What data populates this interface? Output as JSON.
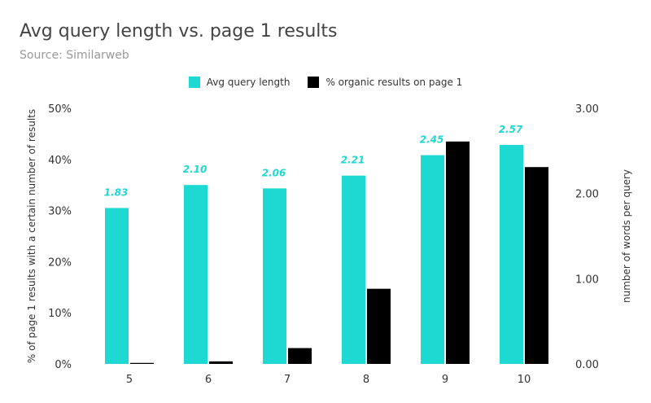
{
  "title": "Avg query length vs. page 1 results",
  "subtitle": "Source: Similarweb",
  "colors": {
    "avg": "#1ed9d1",
    "organic": "#000000"
  },
  "chart_data": {
    "type": "bar",
    "categories": [
      "5",
      "6",
      "7",
      "8",
      "9",
      "10"
    ],
    "series": [
      {
        "name": "Avg query length",
        "axis": "right",
        "values": [
          1.83,
          2.1,
          2.06,
          2.21,
          2.45,
          2.57
        ],
        "labels": [
          "1.83",
          "2.10",
          "2.06",
          "2.21",
          "2.45",
          "2.57"
        ]
      },
      {
        "name": "% organic results on page 1",
        "axis": "left",
        "values": [
          0.2,
          0.5,
          3.1,
          14.7,
          43.5,
          38.5
        ]
      }
    ],
    "ylabel_left": "% of page 1 results with a certain number of results",
    "ylabel_right": "number of words per query",
    "ylim_left": [
      0,
      50
    ],
    "ylim_right": [
      0,
      3
    ],
    "left_ticks": [
      "0%",
      "10%",
      "20%",
      "30%",
      "40%",
      "50%"
    ],
    "right_ticks": [
      "0.00",
      "1.00",
      "2.00",
      "3.00"
    ],
    "grid": false,
    "legend_position": "top-center"
  }
}
